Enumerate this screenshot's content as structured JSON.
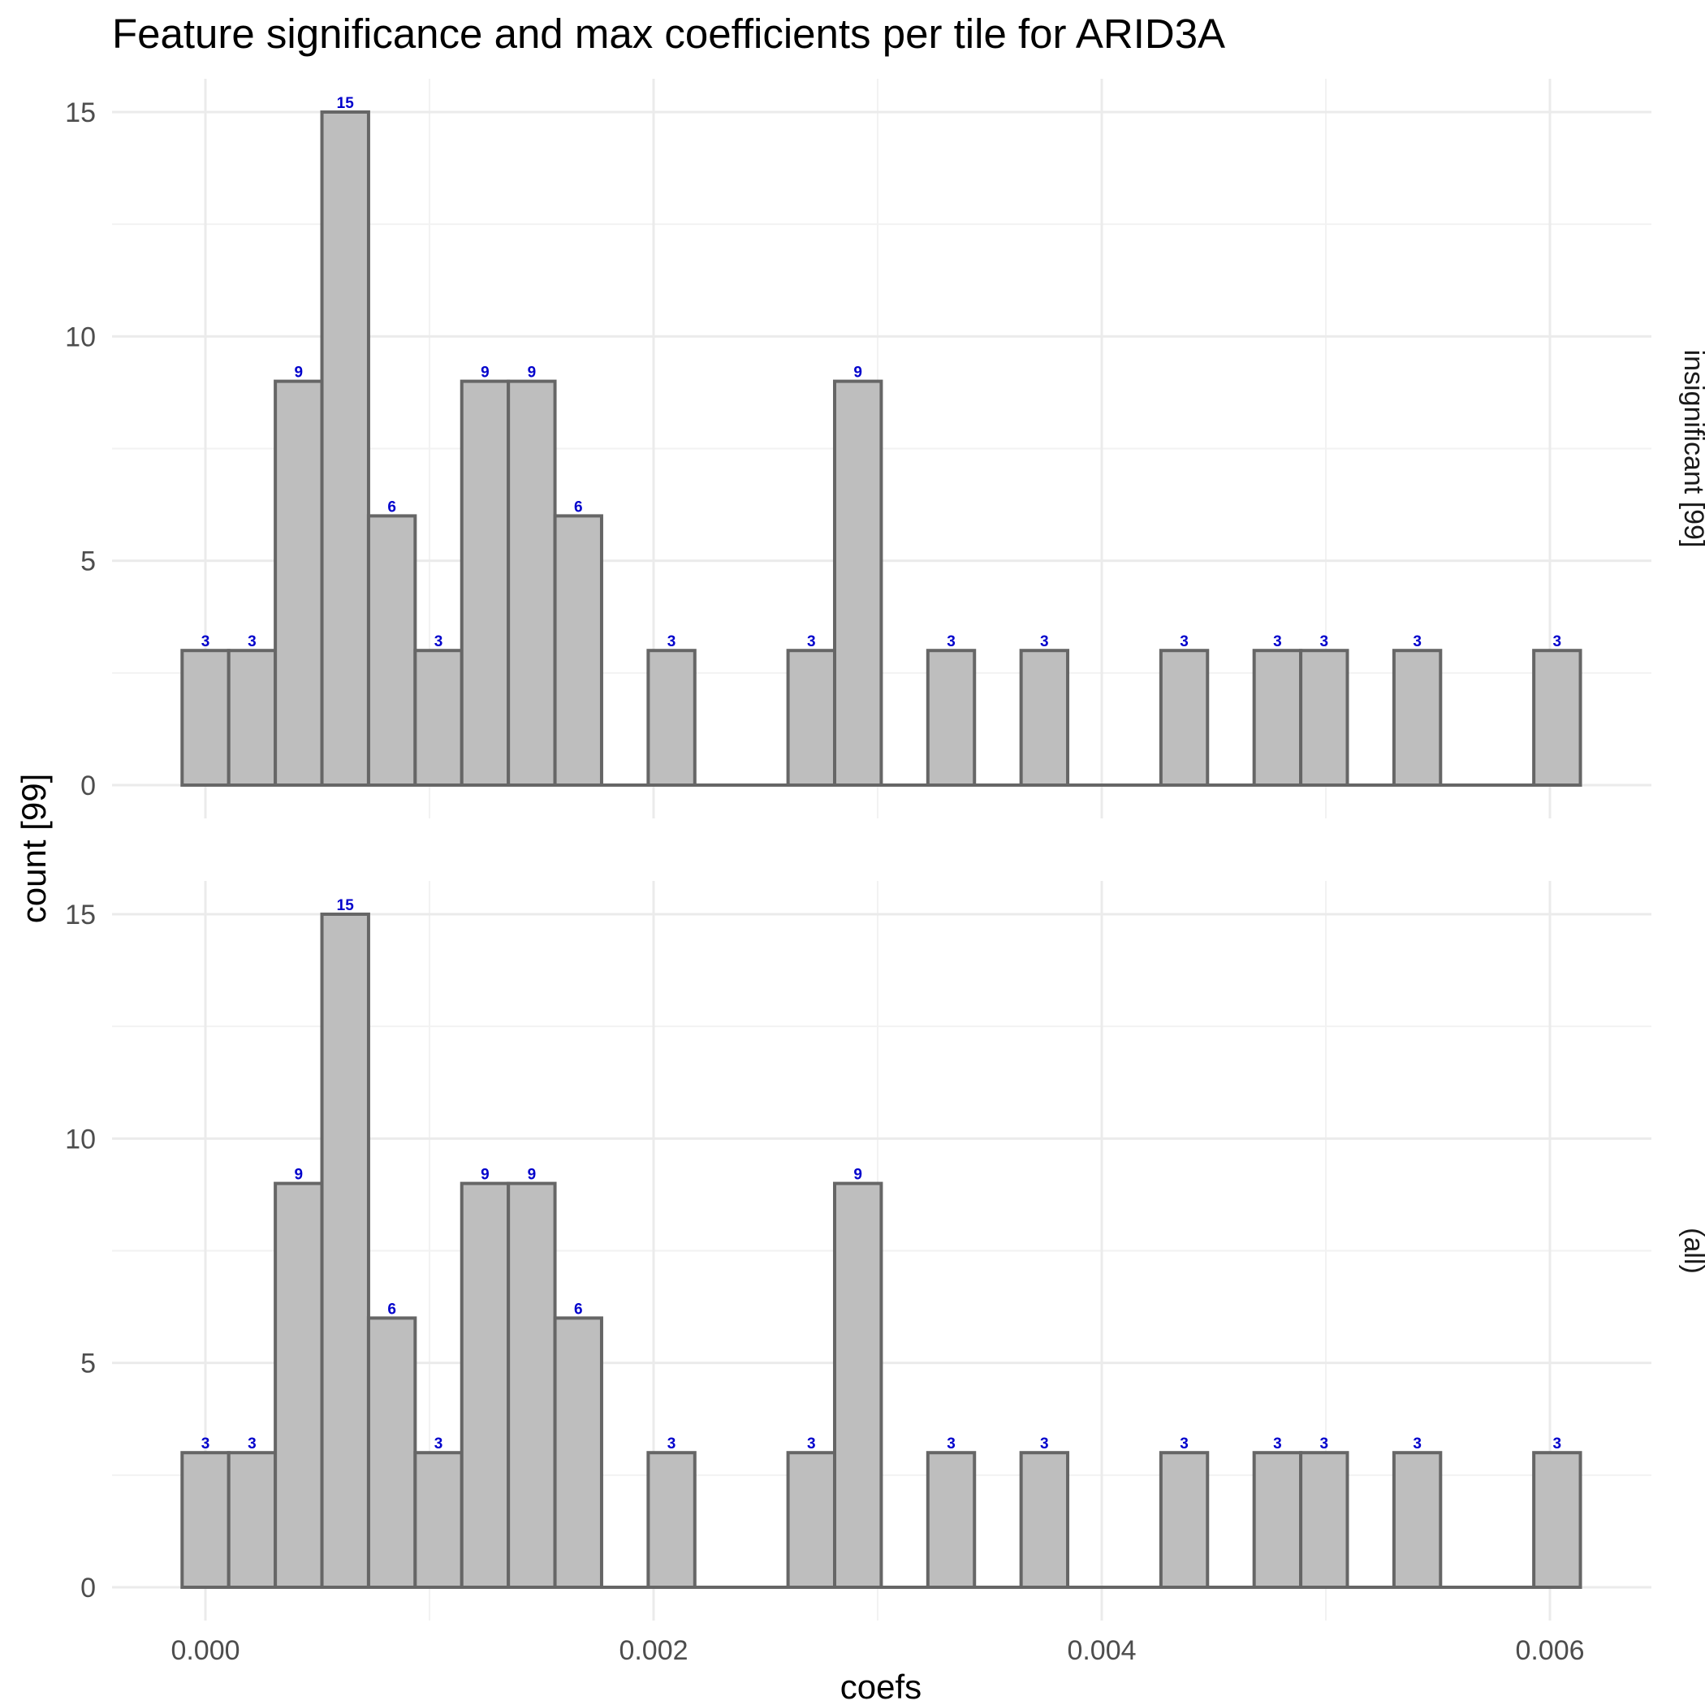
{
  "chart_data": {
    "type": "bar",
    "title": "Feature significance and max coefficients per tile for ARID3A",
    "xlabel": "coefs",
    "ylabel": "count [99]",
    "xlim": [
      -0.0004,
      0.0065
    ],
    "ylim": [
      -0.7,
      15.7
    ],
    "x_ticks": [
      0.0,
      0.002,
      0.004,
      0.006
    ],
    "x_tick_labels": [
      "0.000",
      "0.002",
      "0.004",
      "0.006"
    ],
    "y_ticks": [
      0,
      5,
      10,
      15
    ],
    "y_tick_labels": [
      "0",
      "5",
      "10",
      "15"
    ],
    "bin_width": 0.000208,
    "bin_start": -0.000104,
    "grid": true,
    "legend": "none",
    "colors": {
      "bar_fill": "#bebebe",
      "bar_outline": "#666666",
      "label_color": "#0000cc"
    },
    "panels": [
      {
        "strip_label": "insignificant [99]",
        "values": [
          3,
          3,
          9,
          15,
          6,
          3,
          9,
          9,
          6,
          0,
          3,
          0,
          0,
          3,
          9,
          0,
          3,
          0,
          3,
          0,
          0,
          3,
          0,
          3,
          3,
          0,
          3,
          0,
          0,
          3
        ]
      },
      {
        "strip_label": "(all)",
        "values": [
          3,
          3,
          9,
          15,
          6,
          3,
          9,
          9,
          6,
          0,
          3,
          0,
          0,
          3,
          9,
          0,
          3,
          0,
          3,
          0,
          0,
          3,
          0,
          3,
          3,
          0,
          3,
          0,
          0,
          3
        ]
      }
    ]
  }
}
